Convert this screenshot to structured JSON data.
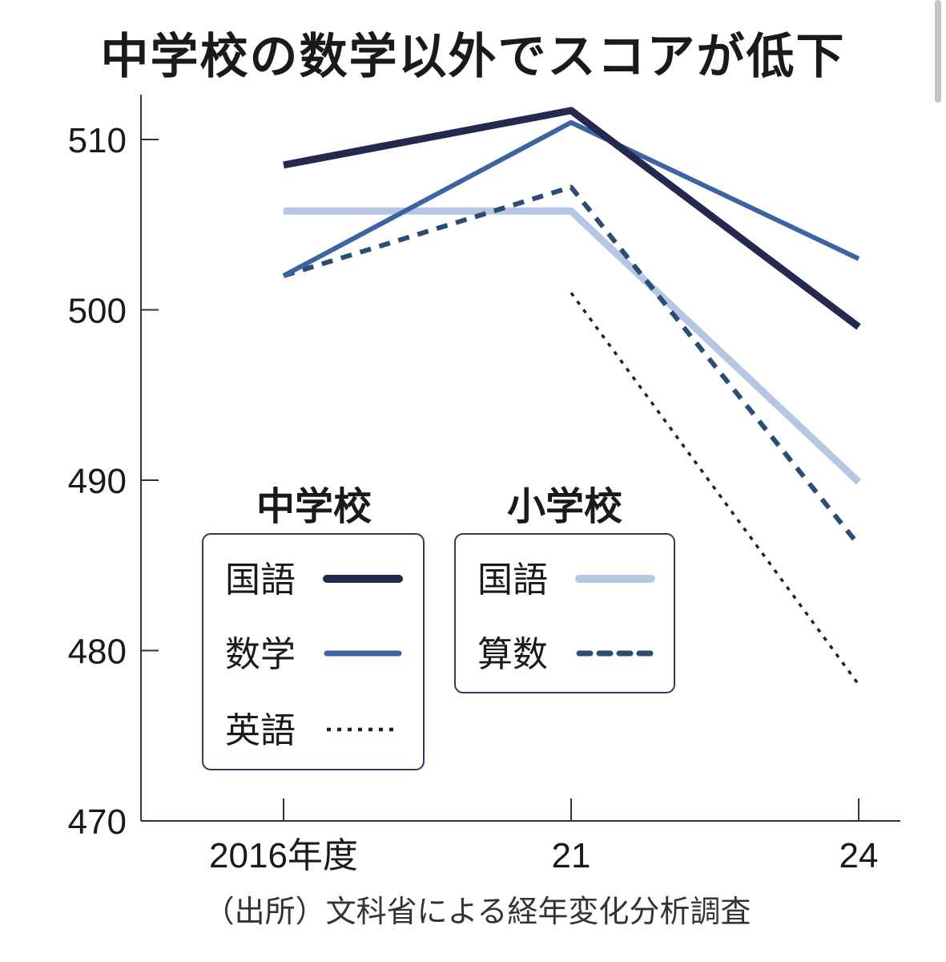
{
  "chart_data": {
    "type": "line",
    "title": "中学校の数学以外でスコアが低下",
    "x": [
      "2016年度",
      "21",
      "24"
    ],
    "ylim": [
      470,
      512
    ],
    "yticks": [
      470,
      480,
      490,
      500,
      510
    ],
    "grid": false,
    "groups": [
      {
        "name": "中学校",
        "series_indices": [
          0,
          1,
          2
        ]
      },
      {
        "name": "小学校",
        "series_indices": [
          3,
          4
        ]
      }
    ],
    "series": [
      {
        "name": "国語",
        "group": "中学校",
        "values": [
          508.5,
          511.7,
          499.0
        ],
        "color": "#26294f",
        "style": "solid-thick"
      },
      {
        "name": "数学",
        "group": "中学校",
        "values": [
          502.0,
          511.0,
          503.0
        ],
        "color": "#3b64a3",
        "style": "solid"
      },
      {
        "name": "英語",
        "group": "中学校",
        "values": [
          null,
          501.0,
          478.0
        ],
        "color": "#222222",
        "style": "dotted"
      },
      {
        "name": "国語",
        "group": "小学校",
        "values": [
          505.8,
          505.8,
          489.9
        ],
        "color": "#b5c7e2",
        "style": "solid-thick"
      },
      {
        "name": "算数",
        "group": "小学校",
        "values": [
          502.0,
          507.2,
          486.2
        ],
        "color": "#2c4d73",
        "style": "dashed"
      }
    ],
    "legend_placement": "inside-bottom-left",
    "source": "（出所）文科省による経年変化分析調査"
  }
}
